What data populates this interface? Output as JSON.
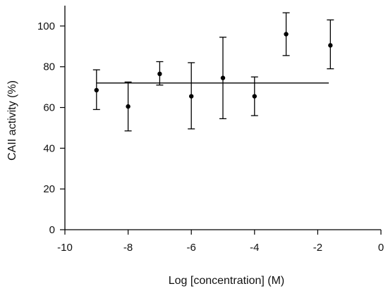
{
  "chart_data": {
    "type": "scatter",
    "title": "",
    "xlabel": "Log [concentration] (M)",
    "ylabel": "CAII activity (%)",
    "xlim": [
      -10,
      0
    ],
    "ylim": [
      0,
      110
    ],
    "x_ticks": [
      -10,
      -8,
      -6,
      -4,
      -2,
      0
    ],
    "y_ticks": [
      0,
      20,
      40,
      60,
      80,
      100
    ],
    "x_tick_labels": [
      "-10",
      "-8",
      "-6",
      "-4",
      "-2",
      "0"
    ],
    "y_tick_labels": [
      "0",
      "20",
      "40",
      "60",
      "80",
      "100"
    ],
    "grid": false,
    "legend": "none",
    "points": [
      {
        "x": -9,
        "y": 68.5,
        "err_low": 59,
        "err_high": 78.5
      },
      {
        "x": -8,
        "y": 60.5,
        "err_low": 48.5,
        "err_high": 72.5
      },
      {
        "x": -7,
        "y": 76.5,
        "err_low": 71,
        "err_high": 82.5
      },
      {
        "x": -6,
        "y": 65.5,
        "err_low": 49.5,
        "err_high": 82
      },
      {
        "x": -5,
        "y": 74.5,
        "err_low": 54.5,
        "err_high": 94.5
      },
      {
        "x": -4,
        "y": 65.5,
        "err_low": 56,
        "err_high": 75
      },
      {
        "x": -3,
        "y": 96,
        "err_low": 85.5,
        "err_high": 106.5
      },
      {
        "x": -1.6,
        "y": 90.5,
        "err_low": 79,
        "err_high": 103
      }
    ],
    "fit_line": {
      "x": [
        -9,
        -1.65
      ],
      "y": [
        72,
        72
      ]
    }
  }
}
